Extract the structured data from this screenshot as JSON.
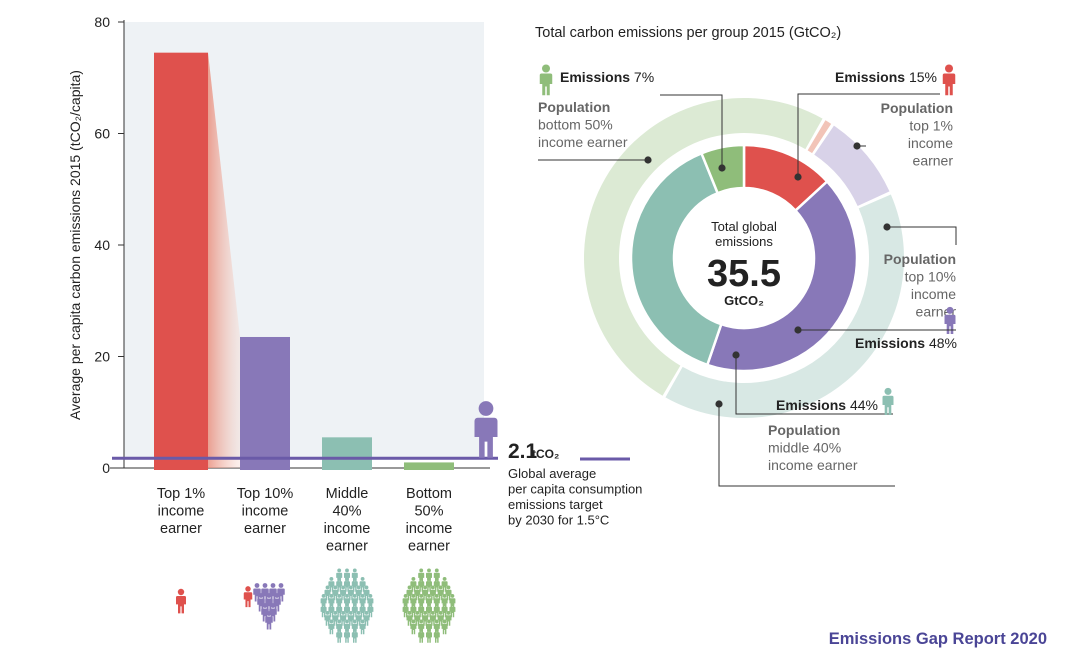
{
  "colors": {
    "top1": "#df514d",
    "top10": "#8878b8",
    "middle40": "#8cbfb2",
    "bottom50": "#8fbd7a",
    "panel_bg": "#eef2f5",
    "target_line": "#6a5aa8",
    "pop_top1": "#f2c4b8",
    "pop_top10": "#d8d2e8",
    "pop_middle40": "#d8e8e4",
    "pop_bottom50": "#dcead4",
    "footer": "#4a4596"
  },
  "chart_data": [
    {
      "type": "bar",
      "ylabel": "Average per capita carbon emissions 2015 (tCO₂/capita)",
      "ylim": [
        0,
        80
      ],
      "yticks": [
        0,
        20,
        40,
        60,
        80
      ],
      "categories": [
        "Top 1%\nincome\nearner",
        "Top 10%\nincome\nearner",
        "Middle\n40%\nincome\nearner",
        "Bottom\n50%\nincome\nearner"
      ],
      "values": [
        74.5,
        23.5,
        5.5,
        1.0
      ],
      "colors": [
        "#df514d",
        "#8878b8",
        "#8cbfb2",
        "#8fbd7a"
      ],
      "icon_names": [
        "person-icon",
        "person-group-icon",
        "person-crowd-icon",
        "person-crowd-icon"
      ],
      "target": {
        "value": 2.1,
        "value_text": "2.1",
        "unit_text": "tCO₂",
        "description": "Global average\nper capita consumption\nemissions target\nby 2030 for 1.5°C"
      }
    },
    {
      "type": "pie",
      "title": "Total carbon emissions per group 2015 (GtCO₂)",
      "center": {
        "label": "Total global\nemissions",
        "value": "35.5",
        "unit": "GtCO₂"
      },
      "emissions": [
        {
          "group": "Top 1%",
          "label": "Emissions",
          "pct": 15,
          "pct_text": "15%"
        },
        {
          "group": "Top 10%",
          "label": "Emissions",
          "pct": 48,
          "pct_text": "48%"
        },
        {
          "group": "Middle 40%",
          "label": "Emissions",
          "pct": 44,
          "pct_text": "44%"
        },
        {
          "group": "Bottom 50%",
          "label": "Emissions",
          "pct": 7,
          "pct_text": "7%"
        }
      ],
      "population": [
        {
          "group": "Top 1%",
          "pct": 1,
          "label": "Population",
          "text": "top 1%\nincome\nearner"
        },
        {
          "group": "Top 10%",
          "pct": 9,
          "label": "Population",
          "text": "top 10%\nincome\nearner"
        },
        {
          "group": "Middle 40%",
          "pct": 40,
          "label": "Population",
          "text": "middle 40%\nincome earner"
        },
        {
          "group": "Bottom 50%",
          "pct": 50,
          "label": "Population",
          "text": "bottom 50%\nincome earner"
        }
      ]
    }
  ],
  "footer": "Emissions Gap Report 2020"
}
